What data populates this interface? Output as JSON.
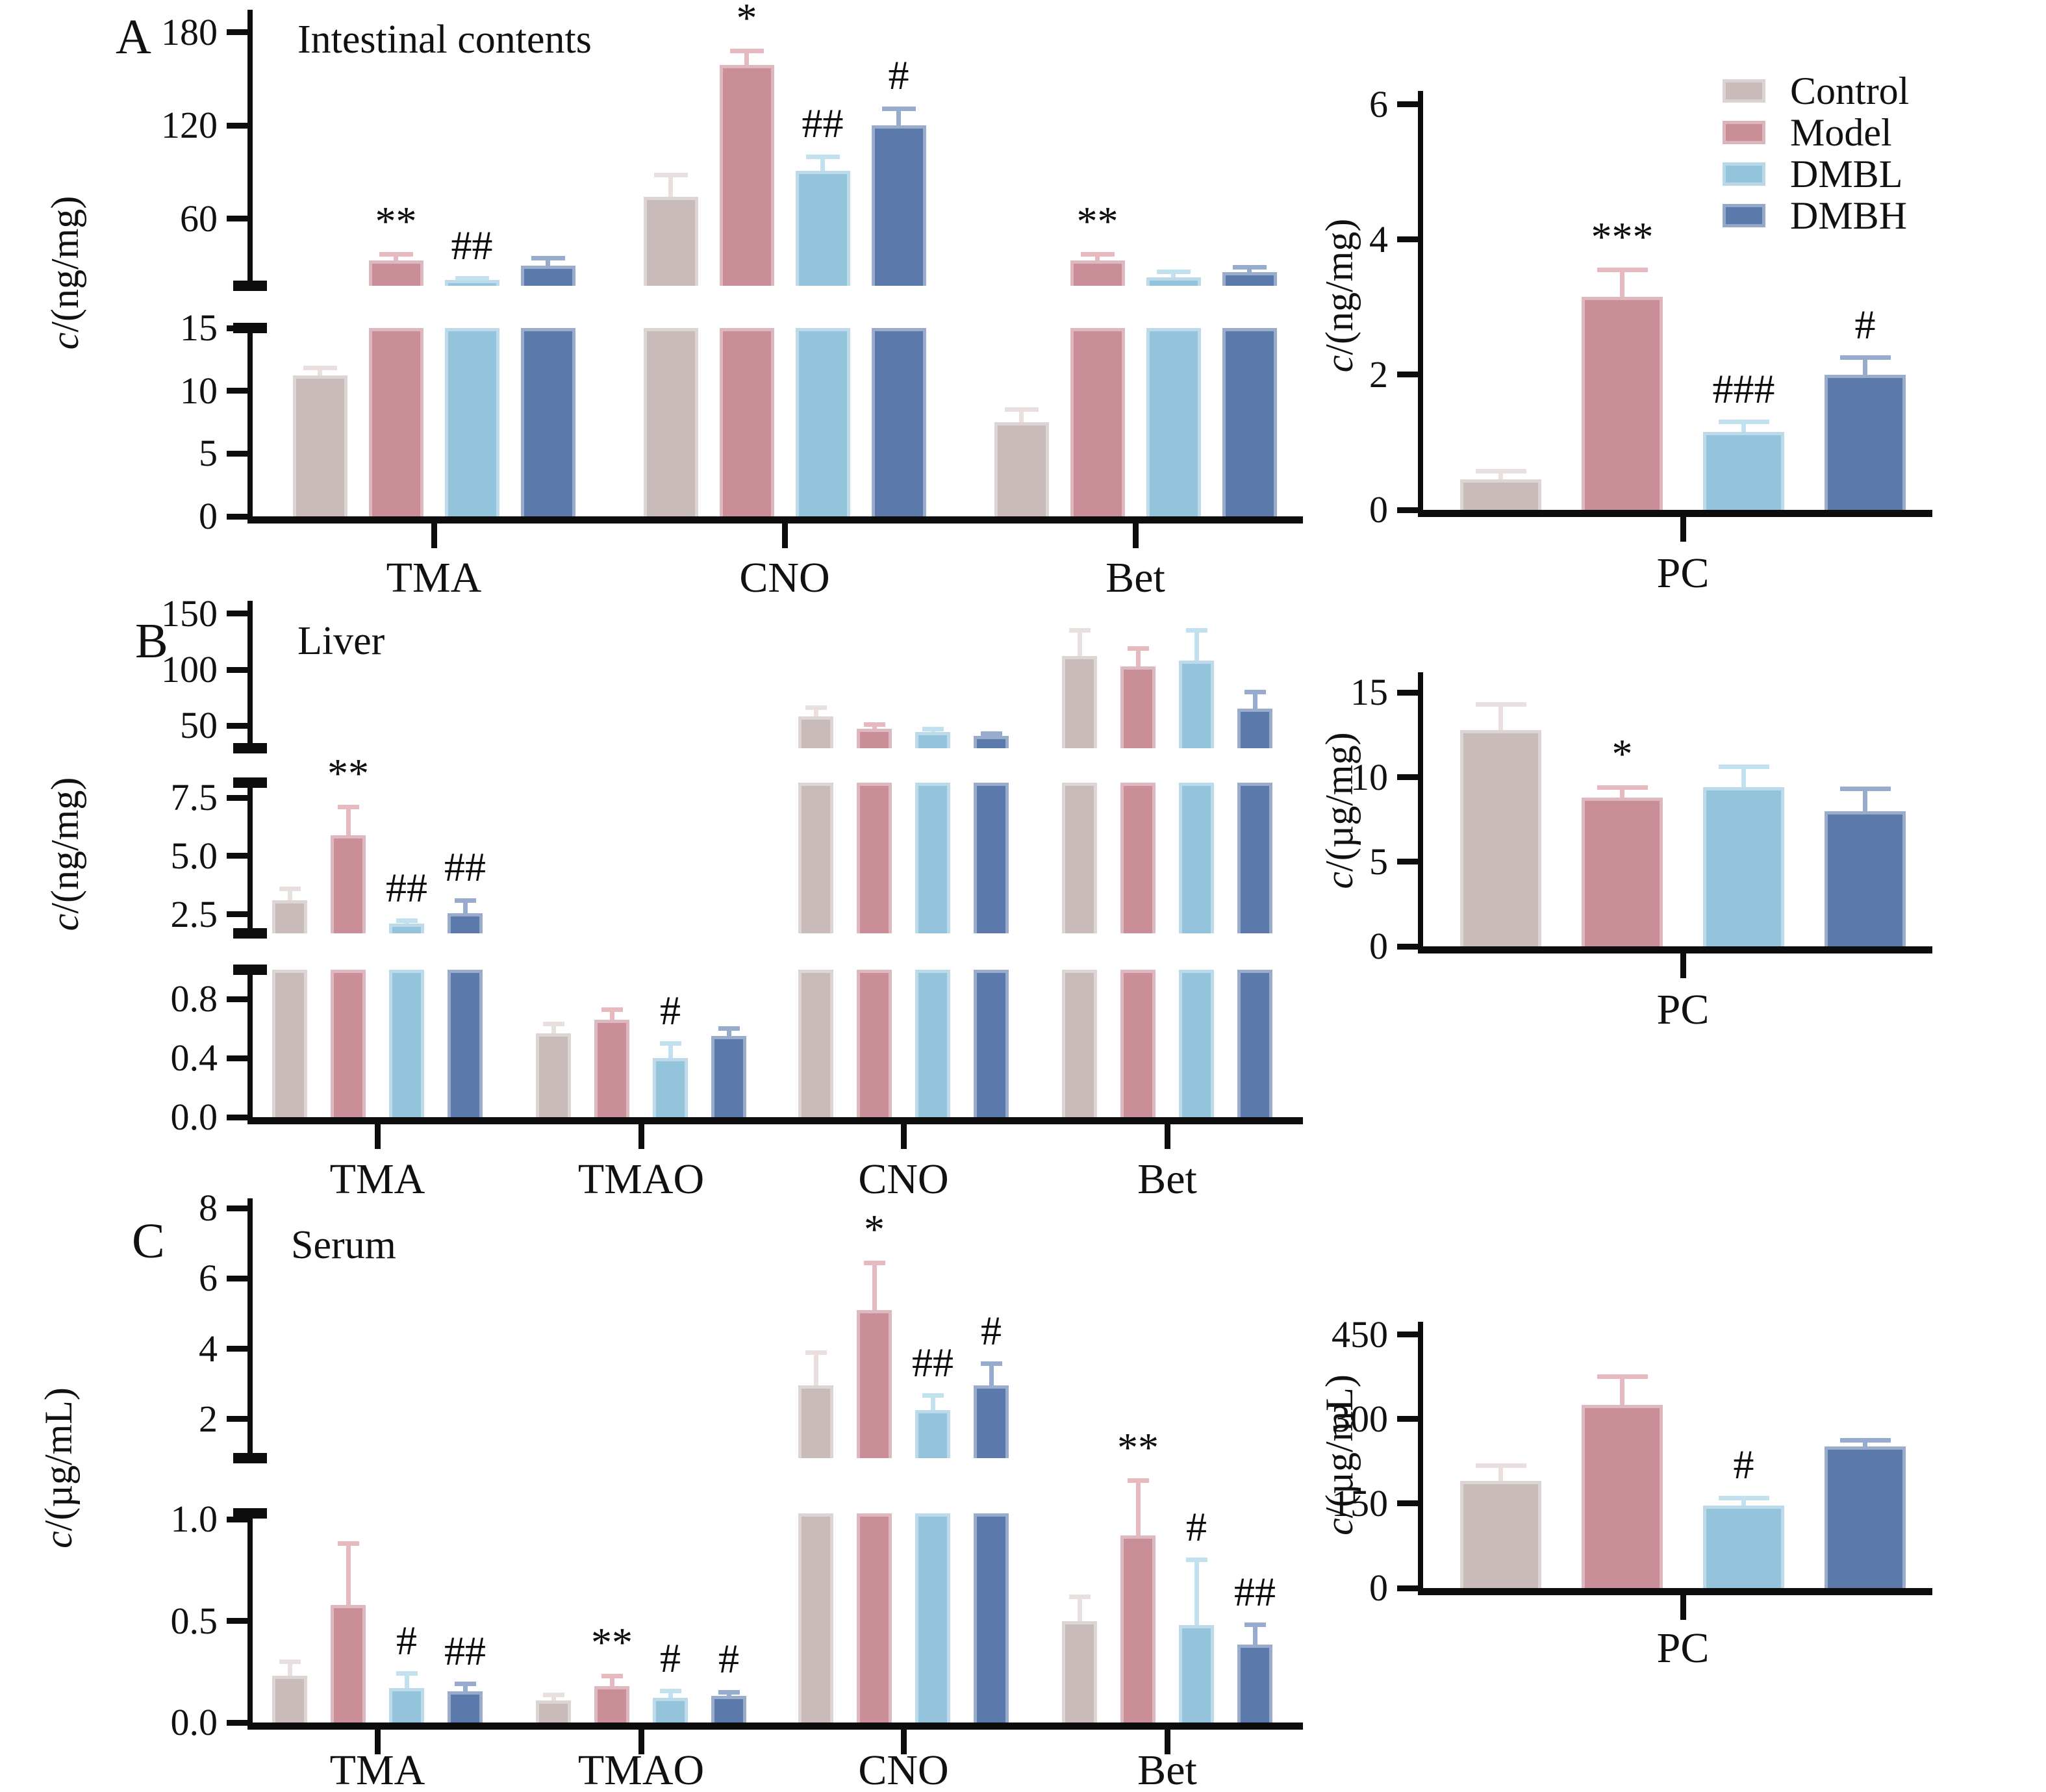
{
  "figure": {
    "panels": [
      {
        "letter": "A",
        "title": "Intestinal contents"
      },
      {
        "letter": "B",
        "title": "Liver"
      },
      {
        "letter": "C",
        "title": "Serum"
      }
    ]
  },
  "legend": {
    "items": [
      {
        "label": "Control",
        "color": "#c9bbba"
      },
      {
        "label": "Model",
        "color": "#c98e98"
      },
      {
        "label": "DMBL",
        "color": "#93c4dc"
      },
      {
        "label": "DMBH",
        "color": "#5b7aab"
      }
    ]
  },
  "series_colors": {
    "Control": {
      "fill": "#c9bbba",
      "err": "#e9dfde"
    },
    "Model": {
      "fill": "#c98e98",
      "err": "#e6b9bf"
    },
    "DMBL": {
      "fill": "#93c4dc",
      "err": "#c2e1ef"
    },
    "DMBH": {
      "fill": "#5b7aab",
      "err": "#97accc"
    }
  },
  "chart_data": [
    {
      "id": "A_left",
      "type": "bar",
      "panel": "A",
      "title": "Intestinal contents",
      "ylabel": "c/(ng/mg)",
      "legend_position": "right-chart-top",
      "categories": [
        "TMA",
        "CNO",
        "Bet"
      ],
      "segments": [
        {
          "range": [
            16.9,
            194.6
          ],
          "ticks": [
            {
              "v": 60,
              "label": "60"
            },
            {
              "v": 120,
              "label": "120"
            },
            {
              "v": 180,
              "label": "180"
            }
          ]
        },
        {
          "range": [
            0,
            15
          ],
          "ticks": [
            {
              "v": 0,
              "label": "0"
            },
            {
              "v": 5,
              "label": "5"
            },
            {
              "v": 10,
              "label": "10"
            },
            {
              "v": 15,
              "label": "15"
            }
          ]
        }
      ],
      "series": [
        {
          "name": "Control",
          "values": [
            11.2,
            74,
            7.5
          ],
          "err": [
            0.6,
            14,
            1.0
          ],
          "sig": [
            "",
            "",
            ""
          ]
        },
        {
          "name": "Model",
          "values": [
            33,
            159,
            33
          ],
          "err": [
            4,
            9,
            4
          ],
          "sig": [
            "**",
            "*",
            "**"
          ]
        },
        {
          "name": "DMBL",
          "values": [
            20.5,
            91,
            22.5
          ],
          "err": [
            1.2,
            9,
            3.5
          ],
          "sig": [
            "##",
            "##",
            ""
          ]
        },
        {
          "name": "DMBH",
          "values": [
            30,
            120,
            25.5
          ],
          "err": [
            4.5,
            11,
            3.5
          ],
          "sig": [
            "",
            "#",
            ""
          ]
        }
      ]
    },
    {
      "id": "A_right",
      "type": "bar",
      "panel": "A",
      "title": "",
      "ylabel": "c/(ng/mg)",
      "categories": [
        "PC"
      ],
      "segments": [
        {
          "range": [
            0,
            6.2
          ],
          "ticks": [
            {
              "v": 0,
              "label": "0"
            },
            {
              "v": 2,
              "label": "2"
            },
            {
              "v": 4,
              "label": "4"
            },
            {
              "v": 6,
              "label": "6"
            }
          ]
        }
      ],
      "series": [
        {
          "name": "Control",
          "values": [
            0.45
          ],
          "err": [
            0.12
          ],
          "sig": [
            ""
          ]
        },
        {
          "name": "Model",
          "values": [
            3.15
          ],
          "err": [
            0.4
          ],
          "sig": [
            "***"
          ]
        },
        {
          "name": "DMBL",
          "values": [
            1.15
          ],
          "err": [
            0.15
          ],
          "sig": [
            "###"
          ]
        },
        {
          "name": "DMBH",
          "values": [
            2.0
          ],
          "err": [
            0.25
          ],
          "sig": [
            "#"
          ]
        }
      ]
    },
    {
      "id": "B_left",
      "type": "bar",
      "panel": "B",
      "title": "Liver",
      "ylabel": "c/(ng/mg)",
      "categories": [
        "TMA",
        "TMAO",
        "CNO",
        "Bet"
      ],
      "segments": [
        {
          "range": [
            29.7,
            161.6
          ],
          "ticks": [
            {
              "v": 50,
              "label": "50"
            },
            {
              "v": 100,
              "label": "100"
            },
            {
              "v": 150,
              "label": "150"
            }
          ]
        },
        {
          "range": [
            1.69,
            8.14
          ],
          "ticks": [
            {
              "v": 2.5,
              "label": "2.5"
            },
            {
              "v": 5.0,
              "label": "5.0"
            },
            {
              "v": 7.5,
              "label": "7.5"
            }
          ]
        },
        {
          "range": [
            0,
            1.0
          ],
          "ticks": [
            {
              "v": 0,
              "label": "0.0"
            },
            {
              "v": 0.4,
              "label": "0.4"
            },
            {
              "v": 0.8,
              "label": "0.8"
            }
          ]
        }
      ],
      "series": [
        {
          "name": "Control",
          "values": [
            3.1,
            0.57,
            58,
            112
          ],
          "err": [
            0.5,
            0.06,
            8,
            23
          ],
          "sig": [
            "",
            "",
            "",
            ""
          ]
        },
        {
          "name": "Model",
          "values": [
            5.9,
            0.66,
            47,
            103
          ],
          "err": [
            1.2,
            0.07,
            4,
            16
          ],
          "sig": [
            "**",
            "",
            "",
            ""
          ]
        },
        {
          "name": "DMBL",
          "values": [
            2.1,
            0.4,
            44,
            108
          ],
          "err": [
            0.12,
            0.1,
            3,
            27
          ],
          "sig": [
            "##",
            "#",
            "",
            ""
          ]
        },
        {
          "name": "DMBH",
          "values": [
            2.55,
            0.55,
            41,
            65
          ],
          "err": [
            0.55,
            0.05,
            1.5,
            15
          ],
          "sig": [
            "##",
            "",
            "",
            ""
          ]
        }
      ]
    },
    {
      "id": "B_right",
      "type": "bar",
      "panel": "B",
      "title": "",
      "ylabel": "c/(µg/mg)",
      "categories": [
        "PC"
      ],
      "segments": [
        {
          "range": [
            0,
            16.2
          ],
          "ticks": [
            {
              "v": 0,
              "label": "0"
            },
            {
              "v": 5,
              "label": "5"
            },
            {
              "v": 10,
              "label": "10"
            },
            {
              "v": 15,
              "label": "15"
            }
          ]
        }
      ],
      "series": [
        {
          "name": "Control",
          "values": [
            12.8
          ],
          "err": [
            1.5
          ],
          "sig": [
            ""
          ]
        },
        {
          "name": "Model",
          "values": [
            8.8
          ],
          "err": [
            0.6
          ],
          "sig": [
            "*"
          ]
        },
        {
          "name": "DMBL",
          "values": [
            9.4
          ],
          "err": [
            1.2
          ],
          "sig": [
            ""
          ]
        },
        {
          "name": "DMBH",
          "values": [
            8.0
          ],
          "err": [
            1.3
          ],
          "sig": [
            ""
          ]
        }
      ]
    },
    {
      "id": "C_left",
      "type": "bar",
      "panel": "C",
      "title": "Serum",
      "ylabel": "c/(µg/mL)",
      "categories": [
        "TMA",
        "TMAO",
        "CNO",
        "Bet"
      ],
      "segments": [
        {
          "range": [
            0.89,
            8.28
          ],
          "ticks": [
            {
              "v": 2,
              "label": "2"
            },
            {
              "v": 4,
              "label": "4"
            },
            {
              "v": 6,
              "label": "6"
            },
            {
              "v": 8,
              "label": "8"
            }
          ]
        },
        {
          "range": [
            0,
            1.03
          ],
          "ticks": [
            {
              "v": 0,
              "label": "0.0"
            },
            {
              "v": 0.5,
              "label": "0.5"
            },
            {
              "v": 1.0,
              "label": "1.0"
            }
          ]
        }
      ],
      "series": [
        {
          "name": "Control",
          "values": [
            0.23,
            0.11,
            2.95,
            0.5
          ],
          "err": [
            0.07,
            0.025,
            0.95,
            0.12
          ],
          "sig": [
            "",
            "",
            "",
            ""
          ]
        },
        {
          "name": "Model",
          "values": [
            0.58,
            0.18,
            5.1,
            0.92
          ],
          "err": [
            0.3,
            0.05,
            1.35,
            0.27
          ],
          "sig": [
            "",
            "**",
            "*",
            "**"
          ]
        },
        {
          "name": "DMBL",
          "values": [
            0.17,
            0.12,
            2.25,
            0.48
          ],
          "err": [
            0.07,
            0.035,
            0.42,
            0.32
          ],
          "sig": [
            "#",
            "#",
            "##",
            "#"
          ]
        },
        {
          "name": "DMBH",
          "values": [
            0.155,
            0.13,
            2.95,
            0.385
          ],
          "err": [
            0.035,
            0.02,
            0.62,
            0.095
          ],
          "sig": [
            "##",
            "#",
            "#",
            "##"
          ]
        }
      ]
    },
    {
      "id": "C_right",
      "type": "bar",
      "panel": "C",
      "title": "",
      "ylabel": "c/(µg/mL)",
      "categories": [
        "PC"
      ],
      "segments": [
        {
          "range": [
            0,
            473
          ],
          "ticks": [
            {
              "v": 0,
              "label": "0"
            },
            {
              "v": 150,
              "label": "150"
            },
            {
              "v": 300,
              "label": "300"
            },
            {
              "v": 450,
              "label": "450"
            }
          ]
        }
      ],
      "series": [
        {
          "name": "Control",
          "values": [
            190
          ],
          "err": [
            27
          ],
          "sig": [
            ""
          ]
        },
        {
          "name": "Model",
          "values": [
            325
          ],
          "err": [
            50
          ],
          "sig": [
            ""
          ]
        },
        {
          "name": "DMBL",
          "values": [
            147
          ],
          "err": [
            13
          ],
          "sig": [
            "#"
          ]
        },
        {
          "name": "DMBH",
          "values": [
            252
          ],
          "err": [
            10
          ],
          "sig": [
            ""
          ]
        }
      ]
    }
  ]
}
